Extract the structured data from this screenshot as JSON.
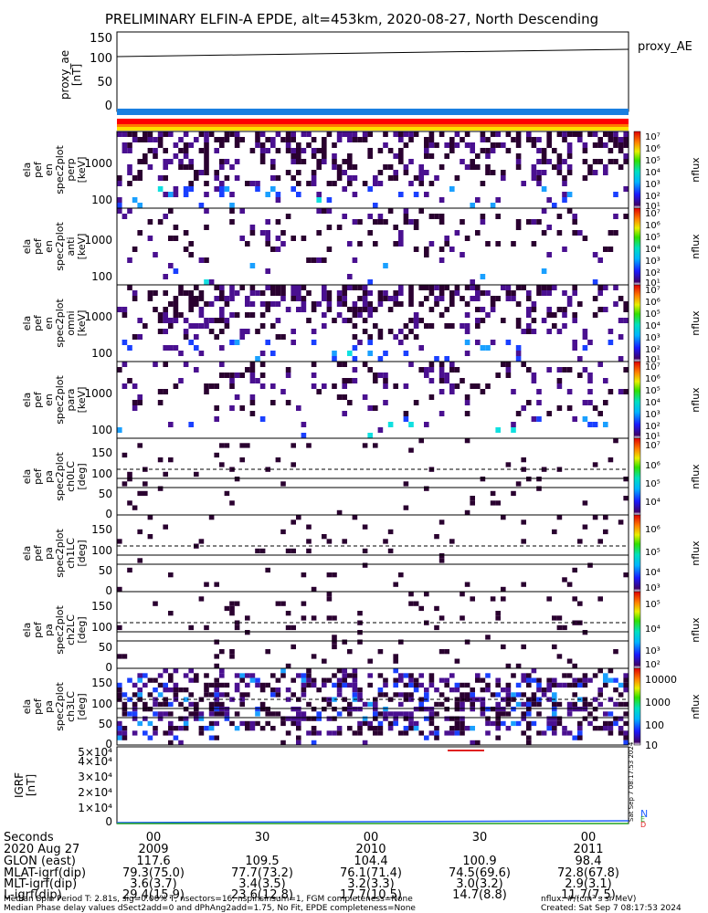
{
  "title": "PRELIMINARY ELFIN-A EPDE, alt=453km, 2020-08-27, North Descending",
  "colors": {
    "bar_blue": "#1a7fe0",
    "bar_red": "#ff0000",
    "bar_orange": "#ff7a00",
    "bar_yellow": "#ffe000",
    "pixel_dark": "#2a0030",
    "pixel_purple": "#4a1090",
    "pixel_blue": "#1a40ff",
    "pixel_lightblue": "#1aa0ff",
    "pixel_cyan": "#10e0e0",
    "line": "#000000"
  },
  "chart_data": [
    {
      "id": "proxy_ae",
      "type": "line",
      "ylabel_lines": [
        "proxy_ae",
        "[nT]"
      ],
      "legend": "proxy_AE",
      "yticks": [
        "150",
        "100",
        "50",
        "0"
      ],
      "ylim": [
        -10,
        155
      ],
      "series": [
        {
          "name": "proxy_AE",
          "x": [
            0,
            1
          ],
          "y": [
            103,
            117
          ]
        }
      ]
    },
    {
      "id": "en_perp",
      "type": "heatmap",
      "ylabel_lines": [
        "ela",
        "pef",
        "en",
        "spec2plot",
        "perp",
        "[keV]"
      ],
      "yticks": [
        "1000",
        "100"
      ],
      "colorbar_label": "nflux",
      "colorbar_ticks": [
        "10⁷",
        "10⁶",
        "10⁵",
        "10⁴",
        "10³",
        "10²",
        "10¹"
      ]
    },
    {
      "id": "en_anti",
      "type": "heatmap",
      "ylabel_lines": [
        "ela",
        "pef",
        "en",
        "spec2plot",
        "anti",
        "[keV]"
      ],
      "yticks": [
        "1000",
        "100"
      ],
      "colorbar_label": "nflux",
      "colorbar_ticks": [
        "10⁷",
        "10⁶",
        "10⁵",
        "10⁴",
        "10³",
        "10²",
        "10¹"
      ]
    },
    {
      "id": "en_omni",
      "type": "heatmap",
      "ylabel_lines": [
        "ela",
        "pef",
        "en",
        "spec2plot",
        "omni",
        "[keV]"
      ],
      "yticks": [
        "1000",
        "100"
      ],
      "colorbar_label": "nflux",
      "colorbar_ticks": [
        "10⁷",
        "10⁶",
        "10⁵",
        "10⁴",
        "10³",
        "10²",
        "10¹"
      ]
    },
    {
      "id": "en_para",
      "type": "heatmap",
      "ylabel_lines": [
        "ela",
        "pef",
        "en",
        "spec2plot",
        "para",
        "[keV]"
      ],
      "yticks": [
        "1000",
        "100"
      ],
      "colorbar_label": "nflux",
      "colorbar_ticks": [
        "10⁷",
        "10⁶",
        "10⁵",
        "10⁴",
        "10³",
        "10²",
        "10¹"
      ]
    },
    {
      "id": "pa_ch0",
      "type": "heatmap",
      "ylabel_lines": [
        "ela",
        "pef",
        "pa",
        "spec2plot",
        "ch0LC",
        "[deg]"
      ],
      "yticks": [
        "150",
        "100",
        "50",
        "0"
      ],
      "colorbar_label": "nflux",
      "colorbar_ticks": [
        "10⁷",
        "10⁶",
        "10⁵",
        "10⁴"
      ]
    },
    {
      "id": "pa_ch1",
      "type": "heatmap",
      "ylabel_lines": [
        "ela",
        "pef",
        "pa",
        "spec2plot",
        "ch1LC",
        "[deg]"
      ],
      "yticks": [
        "150",
        "100",
        "50",
        "0"
      ],
      "colorbar_label": "nflux",
      "colorbar_ticks": [
        "10⁶",
        "10⁵",
        "10⁴",
        "10³"
      ]
    },
    {
      "id": "pa_ch2",
      "type": "heatmap",
      "ylabel_lines": [
        "ela",
        "pef",
        "pa",
        "spec2plot",
        "ch2LC",
        "[deg]"
      ],
      "yticks": [
        "150",
        "100",
        "50",
        "0"
      ],
      "colorbar_label": "nflux",
      "colorbar_ticks": [
        "10⁵",
        "10⁴",
        "10³",
        "10²"
      ]
    },
    {
      "id": "pa_ch3",
      "type": "heatmap",
      "ylabel_lines": [
        "ela",
        "pef",
        "pa",
        "spec2plot",
        "ch3LC",
        "[deg]"
      ],
      "yticks": [
        "150",
        "100",
        "50",
        "0"
      ],
      "colorbar_label": "nflux",
      "colorbar_ticks": [
        "10000",
        "1000",
        "100",
        "10"
      ]
    },
    {
      "id": "igrf",
      "type": "line",
      "ylabel_lines": [
        "IGRF",
        "[nT]"
      ],
      "yticks": [
        "5×10⁴",
        "4×10⁴",
        "3×10⁴",
        "2×10⁴",
        "1×10⁴",
        "0"
      ],
      "ylim": [
        0,
        50000
      ],
      "legend_letters": [
        "N",
        "E",
        "D"
      ],
      "side_text": "Sat Sep  7 08:17:53 2024"
    }
  ],
  "ticks": {
    "rows": [
      {
        "label": "Seconds",
        "values": [
          "00",
          "30",
          "00",
          "30",
          "00"
        ]
      },
      {
        "label": "2020 Aug 27",
        "values": [
          "2009",
          "",
          "2010",
          "",
          "2011"
        ]
      },
      {
        "label": "GLON (east)",
        "values": [
          "117.6",
          "109.5",
          "104.4",
          "100.9",
          "98.4"
        ]
      },
      {
        "label": "MLAT-igrf(dip)",
        "values": [
          "79.3(75.0)",
          "77.7(73.2)",
          "76.1(71.4)",
          "74.5(69.6)",
          "72.8(67.8)"
        ]
      },
      {
        "label": "MLT-igrf(dip)",
        "values": [
          "3.6(3.7)",
          "3.4(3.5)",
          "3.2(3.3)",
          "3.0(3.2)",
          "2.9(3.1)"
        ]
      },
      {
        "label": "L-igrf(dip)",
        "values": [
          "29.4(15.9)",
          "23.6(12.8)",
          "17.7(10.5)",
          "14.7(8.8)",
          "11.7(7.5)"
        ]
      }
    ]
  },
  "footer": {
    "line1": "Median Spin Period T: 2.81s, sig=0.00% T, nsectors=16, nspinsinsum=1, FGM completeness=None",
    "line2": "Median Phase delay values dSect2add=0 and dPhAng2add=1.75, No Fit, EPDE completeness=None",
    "units": "nflux: #/(cm² s sr MeV)",
    "created": "Created: Sat Sep  7 08:17:53 2024"
  }
}
